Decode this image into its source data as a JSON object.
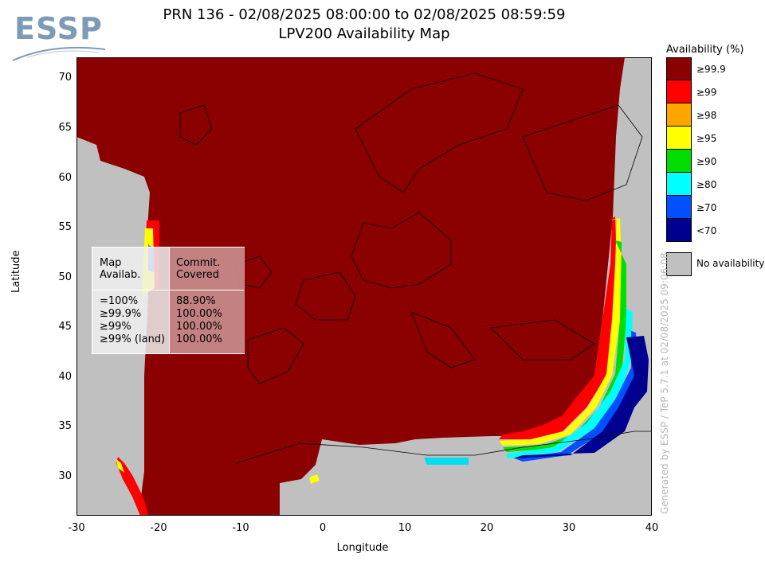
{
  "header": {
    "title_line1": "PRN 136 - 02/08/2025 08:00:00 to 02/08/2025 08:59:59",
    "title_line2": "LPV200 Availability Map"
  },
  "logo": {
    "text": "ESSP"
  },
  "axes": {
    "xlabel": "Longitude",
    "ylabel": "Latitude",
    "x_ticks": [
      "-30",
      "-20",
      "-10",
      "0",
      "10",
      "20",
      "30",
      "40"
    ],
    "y_ticks": [
      "70",
      "65",
      "60",
      "55",
      "50",
      "45",
      "40",
      "35",
      "30"
    ],
    "xlim": [
      -30,
      40
    ],
    "ylim": [
      26,
      72
    ]
  },
  "legend": {
    "title": "Availability (%)",
    "items": [
      {
        "label": "≥99.9",
        "color": "#8b0000"
      },
      {
        "label": "≥99",
        "color": "#ff0000"
      },
      {
        "label": "≥98",
        "color": "#ffa500"
      },
      {
        "label": "≥95",
        "color": "#ffff00"
      },
      {
        "label": "≥90",
        "color": "#00dd00"
      },
      {
        "label": "≥80",
        "color": "#00ffff"
      },
      {
        "label": "≥70",
        "color": "#0050ff"
      },
      {
        "label": "<70",
        "color": "#000090"
      }
    ],
    "no_availability": {
      "label": "No availability",
      "color": "#c0c0c0"
    }
  },
  "stats": {
    "col1_header_l1": "Map",
    "col1_header_l2": "Availab.",
    "col2_header_l1": "Commit.",
    "col2_header_l2": "Covered",
    "rows": [
      {
        "label": "=100%",
        "value": "88.90%"
      },
      {
        "label": "≥99.9%",
        "value": "100.00%"
      },
      {
        "label": "≥99%",
        "value": "100.00%"
      },
      {
        "label": "≥99% (land)",
        "value": "100.00%"
      }
    ]
  },
  "credit": "Generated by ESSP / TeP 5.7.1 at 02/08/2025 09:06:08"
}
